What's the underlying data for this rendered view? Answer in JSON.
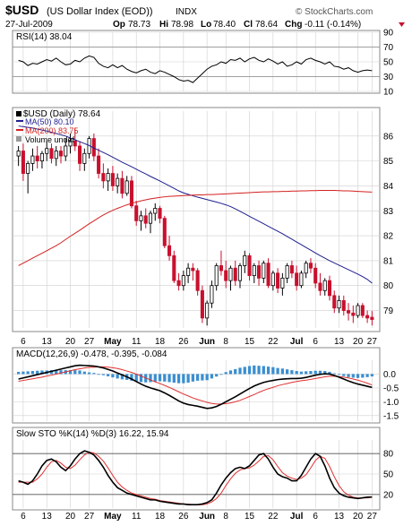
{
  "header": {
    "symbol": "$USD",
    "name": "(US Dollar Index (EOD))",
    "exchange": "INDX",
    "date": "27-Jul-2009",
    "op_label": "Op",
    "op": "78.73",
    "hi_label": "Hi",
    "hi": "78.98",
    "lo_label": "Lo",
    "lo": "78.40",
    "cl_label": "Cl",
    "cl": "78.64",
    "chg_label": "Chg",
    "chg": "-0.11 (-0.14%)",
    "watermark": "© StockCharts.com"
  },
  "colors": {
    "up": "#000000",
    "down": "#c8102e",
    "ma50": "#1f1f8f",
    "ma200": "#d42020",
    "macd_hist": "#3a8ed0",
    "macd_signal": "#e03030",
    "sto_d": "#e03030",
    "grid": "#cfcfcf"
  },
  "x_axis": {
    "tick_labels": [
      "6",
      "13",
      "20",
      "27",
      "May",
      "11",
      "18",
      "26",
      "Jun",
      "8",
      "15",
      "22",
      "Jul",
      "6",
      "13",
      "20",
      "27"
    ]
  },
  "chart_data": [
    {
      "type": "line",
      "panel": "rsi",
      "title": "RSI(14) 38.04",
      "ylim": [
        10,
        90
      ],
      "yticks": [
        10,
        30,
        50,
        70,
        90
      ],
      "reference_lines": [
        30,
        70
      ],
      "series": [
        {
          "name": "RSI(14)",
          "values": [
            52,
            50,
            45,
            48,
            47,
            50,
            53,
            51,
            55,
            50,
            46,
            47,
            52,
            50,
            55,
            58,
            56,
            48,
            44,
            42,
            46,
            42,
            45,
            40,
            37,
            35,
            38,
            40,
            36,
            34,
            38,
            36,
            33,
            30,
            26,
            24,
            25,
            22,
            28,
            34,
            40,
            44,
            46,
            50,
            48,
            53,
            52,
            55,
            50,
            54,
            56,
            52,
            50,
            54,
            51,
            47,
            50,
            44,
            46,
            50,
            47,
            53,
            55,
            52,
            50,
            47,
            50,
            44,
            43,
            40,
            42,
            38,
            36,
            38,
            39,
            38
          ]
        }
      ]
    },
    {
      "type": "candlestick",
      "panel": "price",
      "title": "$USD (Daily) 78.64",
      "legend": [
        "MA(50) 80.10",
        "MA(200) 83.75",
        "Volume undef"
      ],
      "ylim": [
        78.3,
        87.0
      ],
      "yticks": [
        79,
        80,
        81,
        82,
        83,
        84,
        85,
        86
      ],
      "ohlc": [
        [
          85.2,
          85.6,
          84.8,
          85.4
        ],
        [
          85.4,
          85.7,
          84.2,
          84.5
        ],
        [
          84.5,
          85.0,
          83.7,
          84.9
        ],
        [
          84.9,
          85.5,
          84.6,
          85.2
        ],
        [
          85.2,
          85.6,
          84.7,
          85.0
        ],
        [
          85.0,
          85.4,
          84.7,
          85.3
        ],
        [
          85.3,
          85.8,
          85.0,
          85.5
        ],
        [
          85.5,
          85.7,
          84.9,
          85.1
        ],
        [
          85.1,
          85.6,
          84.8,
          85.4
        ],
        [
          85.4,
          85.6,
          84.9,
          85.2
        ],
        [
          85.2,
          85.9,
          85.0,
          85.6
        ],
        [
          85.6,
          86.1,
          85.3,
          85.8
        ],
        [
          85.8,
          86.3,
          85.4,
          85.6
        ],
        [
          85.6,
          85.8,
          84.6,
          84.9
        ],
        [
          84.9,
          85.5,
          84.6,
          85.3
        ],
        [
          85.3,
          86.0,
          85.1,
          85.9
        ],
        [
          85.9,
          86.1,
          85.0,
          85.2
        ],
        [
          85.2,
          85.5,
          84.3,
          84.5
        ],
        [
          84.5,
          84.9,
          83.9,
          84.2
        ],
        [
          84.2,
          84.7,
          83.8,
          84.5
        ],
        [
          84.5,
          84.8,
          83.8,
          84.0
        ],
        [
          84.0,
          84.5,
          83.7,
          84.3
        ],
        [
          84.3,
          84.6,
          83.5,
          83.7
        ],
        [
          83.7,
          84.4,
          83.6,
          84.2
        ],
        [
          84.2,
          84.4,
          83.1,
          83.2
        ],
        [
          83.2,
          83.4,
          82.4,
          82.6
        ],
        [
          82.6,
          83.0,
          82.2,
          82.8
        ],
        [
          82.8,
          83.1,
          82.3,
          82.5
        ],
        [
          82.5,
          83.0,
          82.1,
          82.9
        ],
        [
          82.9,
          83.3,
          82.6,
          83.1
        ],
        [
          83.1,
          83.2,
          82.5,
          82.7
        ],
        [
          82.7,
          82.8,
          81.5,
          81.6
        ],
        [
          81.6,
          82.0,
          81.0,
          81.2
        ],
        [
          81.2,
          81.4,
          80.1,
          80.2
        ],
        [
          80.2,
          80.5,
          79.8,
          80.0
        ],
        [
          80.0,
          80.6,
          79.8,
          80.4
        ],
        [
          80.4,
          80.9,
          80.1,
          80.7
        ],
        [
          80.7,
          80.9,
          80.2,
          80.6
        ],
        [
          80.6,
          80.7,
          79.6,
          79.8
        ],
        [
          79.8,
          80.0,
          78.5,
          78.7
        ],
        [
          78.7,
          79.4,
          78.4,
          79.3
        ],
        [
          79.3,
          80.2,
          79.1,
          80.0
        ],
        [
          80.0,
          80.9,
          79.8,
          80.8
        ],
        [
          80.8,
          81.4,
          80.4,
          80.6
        ],
        [
          80.6,
          81.0,
          79.9,
          80.2
        ],
        [
          80.2,
          80.8,
          79.8,
          80.7
        ],
        [
          80.7,
          81.0,
          80.0,
          80.2
        ],
        [
          80.2,
          80.9,
          79.9,
          80.8
        ],
        [
          80.8,
          81.4,
          80.5,
          81.2
        ],
        [
          81.2,
          81.3,
          80.2,
          80.4
        ],
        [
          80.4,
          80.9,
          80.1,
          80.8
        ],
        [
          80.8,
          81.0,
          80.0,
          80.3
        ],
        [
          80.3,
          81.0,
          80.1,
          80.9
        ],
        [
          80.9,
          81.1,
          79.9,
          80.0
        ],
        [
          80.0,
          80.6,
          79.8,
          80.5
        ],
        [
          80.5,
          80.7,
          79.7,
          79.9
        ],
        [
          79.9,
          80.5,
          79.6,
          80.3
        ],
        [
          80.3,
          80.9,
          80.1,
          80.8
        ],
        [
          80.8,
          81.0,
          80.3,
          80.5
        ],
        [
          80.5,
          80.8,
          79.8,
          80.0
        ],
        [
          80.0,
          80.6,
          79.9,
          80.5
        ],
        [
          80.5,
          81.0,
          80.3,
          80.9
        ],
        [
          80.9,
          81.1,
          80.5,
          80.7
        ],
        [
          80.7,
          80.9,
          79.9,
          80.1
        ],
        [
          80.1,
          80.5,
          79.6,
          79.8
        ],
        [
          79.8,
          80.3,
          79.6,
          80.2
        ],
        [
          80.2,
          80.4,
          79.4,
          79.6
        ],
        [
          79.6,
          79.8,
          78.9,
          79.1
        ],
        [
          79.1,
          79.6,
          78.9,
          79.4
        ],
        [
          79.4,
          79.6,
          78.8,
          79.0
        ],
        [
          79.0,
          79.3,
          78.6,
          78.9
        ],
        [
          78.9,
          79.2,
          78.5,
          78.8
        ],
        [
          78.8,
          79.3,
          78.7,
          79.2
        ],
        [
          79.2,
          79.3,
          78.7,
          78.8
        ],
        [
          78.8,
          79.0,
          78.5,
          78.7
        ],
        [
          78.73,
          78.98,
          78.4,
          78.64
        ]
      ],
      "series": [
        {
          "name": "MA(50)",
          "values": [
            86.4,
            86.38,
            86.35,
            86.32,
            86.28,
            86.24,
            86.2,
            86.15,
            86.1,
            86.05,
            86.0,
            85.92,
            85.85,
            85.77,
            85.7,
            85.62,
            85.52,
            85.43,
            85.34,
            85.25,
            85.15,
            85.05,
            84.95,
            84.86,
            84.77,
            84.67,
            84.57,
            84.48,
            84.38,
            84.29,
            84.2,
            84.1,
            84.0,
            83.9,
            83.8,
            83.72,
            83.66,
            83.6,
            83.55,
            83.5,
            83.45,
            83.4,
            83.35,
            83.3,
            83.24,
            83.17,
            83.08,
            82.98,
            82.88,
            82.78,
            82.68,
            82.58,
            82.48,
            82.38,
            82.28,
            82.18,
            82.08,
            81.97,
            81.86,
            81.75,
            81.64,
            81.53,
            81.42,
            81.31,
            81.2,
            81.1,
            81.0,
            80.91,
            80.82,
            80.73,
            80.64,
            80.55,
            80.46,
            80.36,
            80.25,
            80.1
          ]
        },
        {
          "name": "MA(200)",
          "values": [
            80.8,
            80.9,
            81.0,
            81.1,
            81.2,
            81.3,
            81.4,
            81.5,
            81.6,
            81.72,
            81.85,
            81.98,
            82.1,
            82.22,
            82.35,
            82.48,
            82.6,
            82.72,
            82.83,
            82.93,
            83.02,
            83.1,
            83.17,
            83.24,
            83.3,
            83.35,
            83.4,
            83.44,
            83.48,
            83.51,
            83.54,
            83.56,
            83.58,
            83.59,
            83.6,
            83.61,
            83.62,
            83.63,
            83.64,
            83.64,
            83.65,
            83.65,
            83.66,
            83.67,
            83.68,
            83.69,
            83.7,
            83.71,
            83.72,
            83.73,
            83.74,
            83.75,
            83.76,
            83.76,
            83.77,
            83.77,
            83.78,
            83.78,
            83.79,
            83.79,
            83.8,
            83.8,
            83.81,
            83.81,
            83.82,
            83.82,
            83.82,
            83.82,
            83.81,
            83.8,
            83.8,
            83.79,
            83.78,
            83.77,
            83.76,
            83.75
          ]
        }
      ]
    },
    {
      "type": "line",
      "panel": "macd",
      "title": "MACD(12,26,9) -0.478, -0.395, -0.084",
      "ylim": [
        -1.7,
        0.5
      ],
      "yticks": [
        -1.5,
        -1.0,
        -0.5,
        0.0
      ],
      "series": [
        {
          "name": "MACD",
          "values": [
            -0.18,
            -0.14,
            -0.1,
            -0.06,
            -0.02,
            0.02,
            0.06,
            0.1,
            0.14,
            0.18,
            0.22,
            0.26,
            0.3,
            0.32,
            0.31,
            0.3,
            0.29,
            0.26,
            0.22,
            0.17,
            0.11,
            0.04,
            -0.03,
            -0.1,
            -0.18,
            -0.27,
            -0.36,
            -0.44,
            -0.5,
            -0.55,
            -0.6,
            -0.68,
            -0.77,
            -0.87,
            -0.97,
            -1.05,
            -1.1,
            -1.13,
            -1.16,
            -1.2,
            -1.24,
            -1.22,
            -1.17,
            -1.09,
            -1.0,
            -0.91,
            -0.82,
            -0.72,
            -0.62,
            -0.52,
            -0.43,
            -0.36,
            -0.3,
            -0.26,
            -0.23,
            -0.2,
            -0.18,
            -0.17,
            -0.16,
            -0.16,
            -0.15,
            -0.12,
            -0.08,
            -0.04,
            -0.01,
            0.01,
            0.0,
            -0.05,
            -0.11,
            -0.18,
            -0.25,
            -0.31,
            -0.36,
            -0.4,
            -0.44,
            -0.48
          ]
        },
        {
          "name": "Signal",
          "values": [
            -0.26,
            -0.23,
            -0.2,
            -0.17,
            -0.14,
            -0.11,
            -0.07,
            -0.04,
            0.0,
            0.04,
            0.08,
            0.12,
            0.16,
            0.19,
            0.22,
            0.24,
            0.25,
            0.26,
            0.26,
            0.25,
            0.23,
            0.2,
            0.16,
            0.11,
            0.06,
            0.0,
            -0.07,
            -0.14,
            -0.21,
            -0.28,
            -0.34,
            -0.41,
            -0.48,
            -0.56,
            -0.64,
            -0.72,
            -0.79,
            -0.86,
            -0.92,
            -0.97,
            -1.02,
            -1.06,
            -1.08,
            -1.08,
            -1.07,
            -1.04,
            -1.0,
            -0.95,
            -0.88,
            -0.81,
            -0.74,
            -0.66,
            -0.59,
            -0.53,
            -0.48,
            -0.42,
            -0.38,
            -0.34,
            -0.3,
            -0.27,
            -0.24,
            -0.22,
            -0.19,
            -0.16,
            -0.13,
            -0.1,
            -0.08,
            -0.08,
            -0.09,
            -0.11,
            -0.14,
            -0.18,
            -0.22,
            -0.27,
            -0.33,
            -0.395
          ]
        }
      ]
    },
    {
      "type": "line",
      "panel": "sto",
      "title": "Slow STO %K(14) %D(3) 16.22, 15.94",
      "ylim": [
        0,
        100
      ],
      "yticks": [
        20,
        50,
        80
      ],
      "reference_lines": [
        20,
        80
      ],
      "series": [
        {
          "name": "%K",
          "values": [
            40,
            38,
            35,
            40,
            50,
            62,
            70,
            72,
            68,
            60,
            55,
            62,
            72,
            80,
            84,
            82,
            78,
            70,
            60,
            48,
            38,
            30,
            26,
            22,
            20,
            18,
            16,
            14,
            12,
            12,
            10,
            9,
            8,
            7,
            6,
            6,
            5,
            5,
            5,
            6,
            8,
            12,
            22,
            34,
            44,
            52,
            58,
            60,
            58,
            62,
            70,
            78,
            80,
            72,
            60,
            50,
            46,
            44,
            40,
            40,
            48,
            60,
            72,
            80,
            76,
            62,
            44,
            30,
            22,
            18,
            16,
            15,
            14,
            15,
            16,
            16.22
          ]
        },
        {
          "name": "%D",
          "values": [
            38,
            38,
            38,
            38,
            43,
            50,
            60,
            68,
            70,
            66,
            60,
            58,
            63,
            71,
            78,
            82,
            81,
            76,
            69,
            59,
            48,
            38,
            31,
            26,
            22,
            20,
            18,
            16,
            14,
            13,
            11,
            10,
            9,
            8,
            7,
            6,
            6,
            5,
            5,
            5,
            6,
            9,
            14,
            22,
            33,
            43,
            51,
            56,
            58,
            59,
            63,
            69,
            76,
            77,
            71,
            61,
            52,
            47,
            44,
            42,
            44,
            49,
            59,
            70,
            76,
            73,
            61,
            46,
            33,
            24,
            19,
            16,
            15,
            15,
            15,
            15.94
          ]
        }
      ]
    }
  ]
}
